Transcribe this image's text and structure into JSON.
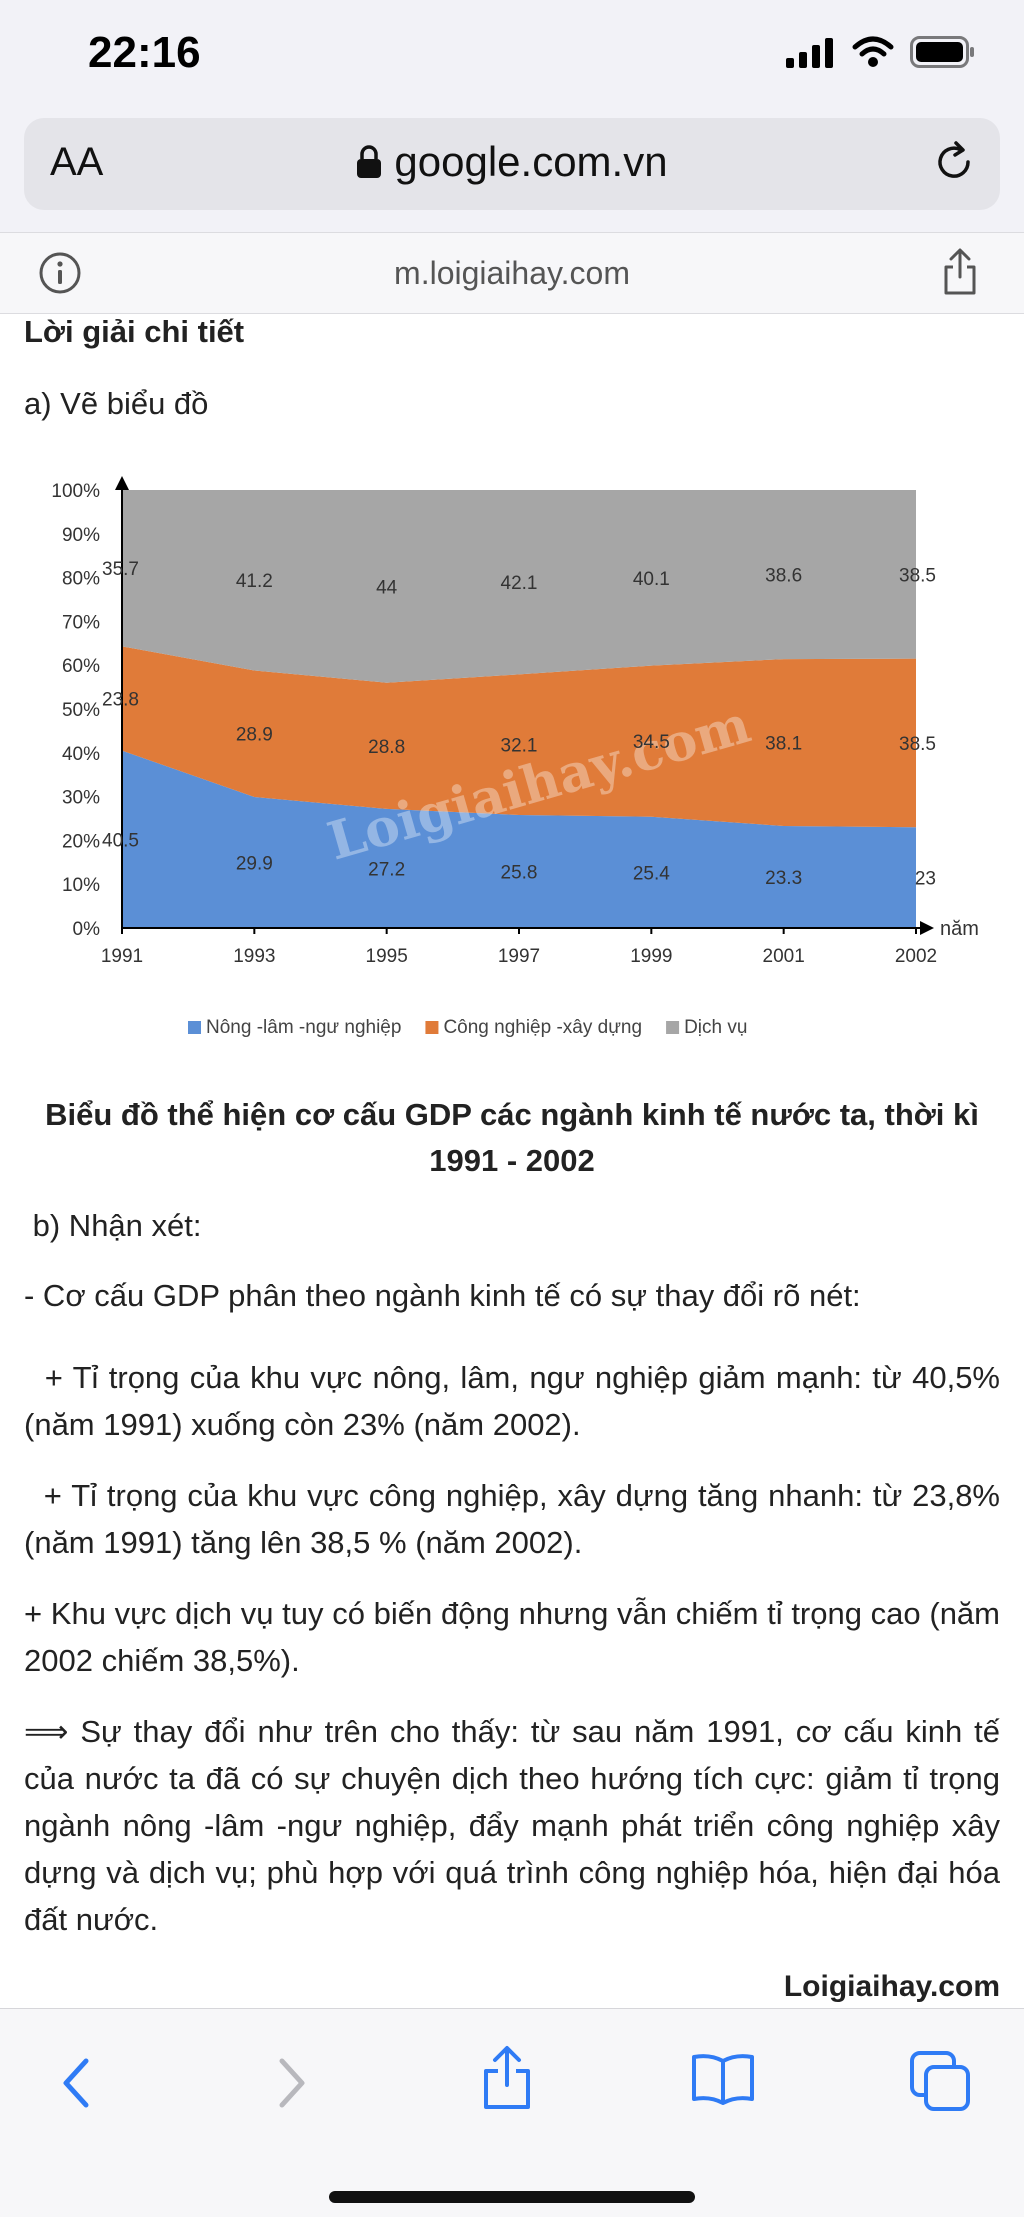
{
  "status_bar": {
    "time": "22:16"
  },
  "browser": {
    "text_size_label": "AA",
    "url": "google.com.vn",
    "sub_domain": "m.loigiaihay.com"
  },
  "article": {
    "heading": "Lời giải chi tiết",
    "part_a": "a) Vẽ biểu đồ",
    "caption": "Biểu đồ thể hiện cơ cấu GDP các ngành kinh tế nước ta, thời kì 1991 - 2002",
    "part_b": "b) Nhận xét:",
    "p1": "- Cơ cấu GDP phân theo ngành kinh tế có sự thay đổi rõ nét:",
    "p2": "+ Tỉ trọng của khu vực nông, lâm, ngư nghiệp giảm mạnh: từ 40,5% (năm 1991) xuống còn 23% (năm 2002).",
    "p3": "+ Tỉ trọng của khu vực công nghiệp, xây dựng tăng nhanh: từ 23,8% (năm 1991) tăng lên 38,5 % (năm 2002).",
    "p4": "+ Khu vực dịch vụ tuy có biến động nhưng vẫn chiếm tỉ trọng cao (năm 2002 chiếm 38,5%).",
    "p5": "⟹ Sự thay đổi như trên cho thấy: từ sau năm 1991, cơ cấu kinh tế của nước ta đã có sự chuyện dịch theo hướng tích cực: giảm tỉ trọng ngành nông -lâm -ngư nghiệp, đẩy mạnh phát triển công nghiệp xây dựng và dịch vụ; phù hợp với quá trình công nghiệp hóa, hiện đại hóa đất nước.",
    "brand": "Loigiaihay.com"
  },
  "chart_data": {
    "type": "area",
    "stacked": true,
    "x": [
      "1991",
      "1993",
      "1995",
      "1997",
      "1999",
      "2001",
      "2002"
    ],
    "xlabel": "năm",
    "ylim": [
      0,
      100
    ],
    "yticks": [
      "0%",
      "10%",
      "20%",
      "30%",
      "40%",
      "50%",
      "60%",
      "70%",
      "80%",
      "90%",
      "100%"
    ],
    "watermark": "Loigiaihay.com",
    "series": [
      {
        "name": "Nông -lâm -ngư nghiệp",
        "color": "#5b8fd6",
        "values": [
          40.5,
          29.9,
          27.2,
          25.8,
          25.4,
          23.3,
          23
        ],
        "labels": [
          "40.5",
          "29.9",
          "27.2",
          "25.8",
          "25.4",
          "23.3",
          "23"
        ]
      },
      {
        "name": "Công nghiệp -xây dựng",
        "color": "#e07b39",
        "values": [
          23.8,
          28.9,
          28.8,
          32.1,
          34.5,
          38.1,
          38.5
        ],
        "labels": [
          "23.8",
          "28.9",
          "28.8",
          "32.1",
          "34.5",
          "38.1",
          "38.5"
        ]
      },
      {
        "name": "Dịch vụ",
        "color": "#a6a6a6",
        "values": [
          35.7,
          41.2,
          44,
          42.1,
          40.1,
          38.6,
          38.5
        ],
        "labels": [
          "35.7",
          "41.2",
          "44",
          "42.1",
          "40.1",
          "38.6",
          "38.5"
        ]
      }
    ]
  }
}
